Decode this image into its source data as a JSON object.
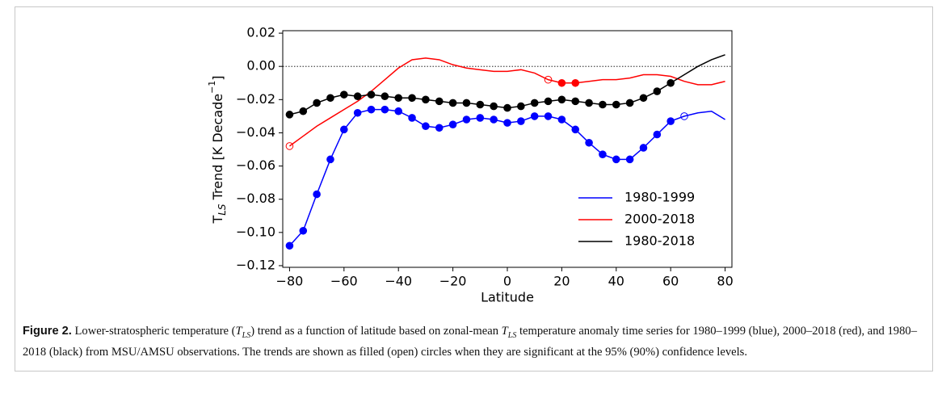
{
  "chart_data": {
    "type": "line",
    "xlabel": "Latitude",
    "ylabel": [
      "T",
      "LS",
      " Trend [K Decade",
      "−1",
      "]"
    ],
    "x": [
      -80,
      -75,
      -70,
      -65,
      -60,
      -55,
      -50,
      -45,
      -40,
      -35,
      -30,
      -25,
      -20,
      -15,
      -10,
      -5,
      0,
      5,
      10,
      15,
      20,
      25,
      30,
      35,
      40,
      45,
      50,
      55,
      60,
      65,
      70,
      75,
      80
    ],
    "xlim": [
      -82.5,
      82.5
    ],
    "xticks": [
      {
        "value": -80,
        "label": "−80"
      },
      {
        "value": -60,
        "label": "−60"
      },
      {
        "value": -40,
        "label": "−40"
      },
      {
        "value": -20,
        "label": "−20"
      },
      0,
      20,
      40,
      60,
      80
    ],
    "ylim": [
      -0.121,
      0.0215
    ],
    "yticks": [
      {
        "value": -0.12,
        "label": "−0.12"
      },
      {
        "value": -0.1,
        "label": "−0.10"
      },
      {
        "value": -0.08,
        "label": "−0.08"
      },
      {
        "value": -0.06,
        "label": "−0.06"
      },
      {
        "value": -0.04,
        "label": "−0.04"
      },
      {
        "value": -0.02,
        "label": "−0.02"
      },
      {
        "value": 0,
        "label": "0.00"
      },
      0.02
    ],
    "reference_line": 0,
    "legend": "lower right",
    "series": [
      {
        "name": "1980-1999",
        "color": "#0000ff",
        "values": [
          -0.108,
          -0.099,
          -0.077,
          -0.056,
          -0.038,
          -0.028,
          -0.026,
          -0.026,
          -0.027,
          -0.031,
          -0.036,
          -0.037,
          -0.035,
          -0.032,
          -0.031,
          -0.032,
          -0.034,
          -0.033,
          -0.03,
          -0.03,
          -0.032,
          -0.038,
          -0.046,
          -0.053,
          -0.056,
          -0.056,
          -0.049,
          -0.041,
          -0.033,
          -0.03,
          -0.028,
          -0.027,
          -0.032
        ],
        "markers": [
          "filled",
          "filled",
          "filled",
          "filled",
          "filled",
          "filled",
          "filled",
          "filled",
          "filled",
          "filled",
          "filled",
          "filled",
          "filled",
          "filled",
          "filled",
          "filled",
          "filled",
          "filled",
          "filled",
          "filled",
          "filled",
          "filled",
          "filled",
          "filled",
          "filled",
          "filled",
          "filled",
          "filled",
          "filled",
          "open",
          null,
          null,
          null
        ]
      },
      {
        "name": "2000-2018",
        "color": "#ff0000",
        "values": [
          -0.048,
          -0.042,
          -0.036,
          -0.031,
          -0.026,
          -0.021,
          -0.015,
          -0.008,
          -0.001,
          0.004,
          0.005,
          0.004,
          0.001,
          -0.001,
          -0.002,
          -0.003,
          -0.003,
          -0.002,
          -0.004,
          -0.008,
          -0.01,
          -0.01,
          -0.009,
          -0.008,
          -0.008,
          -0.007,
          -0.005,
          -0.005,
          -0.006,
          -0.009,
          -0.011,
          -0.011,
          -0.009
        ],
        "markers": [
          "open",
          null,
          null,
          null,
          null,
          null,
          null,
          null,
          null,
          null,
          null,
          null,
          null,
          null,
          null,
          null,
          null,
          null,
          null,
          "open",
          "filled",
          "filled",
          null,
          null,
          null,
          null,
          null,
          null,
          null,
          null,
          null,
          null,
          null
        ]
      },
      {
        "name": "1980-2018",
        "color": "#000000",
        "values": [
          -0.029,
          -0.027,
          -0.022,
          -0.019,
          -0.017,
          -0.018,
          -0.017,
          -0.018,
          -0.019,
          -0.019,
          -0.02,
          -0.021,
          -0.022,
          -0.022,
          -0.023,
          -0.024,
          -0.025,
          -0.024,
          -0.022,
          -0.021,
          -0.02,
          -0.021,
          -0.022,
          -0.023,
          -0.023,
          -0.022,
          -0.019,
          -0.015,
          -0.01,
          -0.005,
          0.0,
          0.004,
          0.007
        ],
        "markers": [
          "filled",
          "filled",
          "filled",
          "filled",
          "filled",
          "filled",
          "filled",
          "filled",
          "filled",
          "filled",
          "filled",
          "filled",
          "filled",
          "filled",
          "filled",
          "filled",
          "filled",
          "filled",
          "filled",
          "filled",
          "filled",
          "filled",
          "filled",
          "filled",
          "filled",
          "filled",
          "filled",
          "filled",
          "filled",
          null,
          null,
          null,
          null
        ]
      }
    ]
  },
  "caption": [
    "Figure 2.",
    " Lower-stratospheric temperature (",
    "T",
    "LS",
    ") trend as a function of latitude based on zonal-mean ",
    "T",
    "LS",
    " temperature anomaly time series for 1980–1999 (blue), 2000–2018 (red), and 1980–2018 (black) from MSU/AMSU observations. The trends are shown as filled (open) circles when they are significant at the 95% (90%) confidence levels."
  ]
}
